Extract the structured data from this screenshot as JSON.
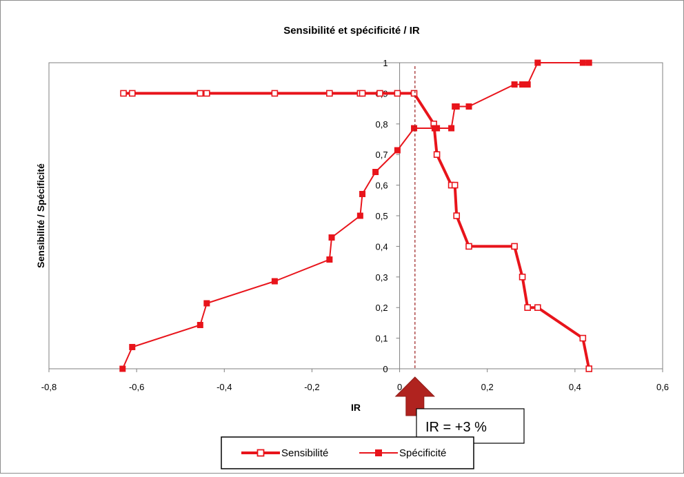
{
  "chart_data": {
    "type": "line",
    "title": "Sensibilité et spécificité / IR",
    "xlabel": "IR",
    "ylabel": "Sensibilité / Spécificité",
    "xlim": [
      -0.8,
      0.6
    ],
    "ylim": [
      0,
      1
    ],
    "xticks": [
      "-0,8",
      "-0,6",
      "-0,4",
      "-0,2",
      "0",
      "0,2",
      "0,4",
      "0,6"
    ],
    "yticks": [
      "0",
      "0,1",
      "0,2",
      "0,3",
      "0,4",
      "0,5",
      "0,6",
      "0,7",
      "0,8",
      "0,9",
      "1"
    ],
    "grid": false,
    "legend_position": "bottom",
    "series": [
      {
        "name": "Sensibilité",
        "color": "#e8141b",
        "marker": "hollow-square",
        "points": [
          [
            -0.63,
            0.9
          ],
          [
            -0.61,
            0.9
          ],
          [
            -0.455,
            0.9
          ],
          [
            -0.44,
            0.9
          ],
          [
            -0.285,
            0.9
          ],
          [
            -0.16,
            0.9
          ],
          [
            -0.09,
            0.9
          ],
          [
            -0.085,
            0.9
          ],
          [
            -0.045,
            0.9
          ],
          [
            -0.005,
            0.9
          ],
          [
            0.033,
            0.9
          ],
          [
            0.078,
            0.8
          ],
          [
            0.085,
            0.7
          ],
          [
            0.118,
            0.6
          ],
          [
            0.126,
            0.6
          ],
          [
            0.13,
            0.5
          ],
          [
            0.158,
            0.4
          ],
          [
            0.262,
            0.4
          ],
          [
            0.28,
            0.3
          ],
          [
            0.292,
            0.2
          ],
          [
            0.315,
            0.2
          ],
          [
            0.418,
            0.1
          ],
          [
            0.432,
            0
          ]
        ]
      },
      {
        "name": "Spécificité",
        "color": "#e8141b",
        "marker": "filled-square",
        "points": [
          [
            -0.632,
            0
          ],
          [
            -0.61,
            0.071
          ],
          [
            -0.455,
            0.143
          ],
          [
            -0.44,
            0.214
          ],
          [
            -0.285,
            0.286
          ],
          [
            -0.16,
            0.357
          ],
          [
            -0.155,
            0.429
          ],
          [
            -0.09,
            0.5
          ],
          [
            -0.085,
            0.571
          ],
          [
            -0.055,
            0.643
          ],
          [
            -0.005,
            0.714
          ],
          [
            0.033,
            0.786
          ],
          [
            0.08,
            0.786
          ],
          [
            0.085,
            0.786
          ],
          [
            0.118,
            0.786
          ],
          [
            0.126,
            0.857
          ],
          [
            0.13,
            0.857
          ],
          [
            0.158,
            0.857
          ],
          [
            0.262,
            0.929
          ],
          [
            0.28,
            0.929
          ],
          [
            0.292,
            0.929
          ],
          [
            0.315,
            1
          ],
          [
            0.418,
            1
          ],
          [
            0.432,
            1
          ]
        ]
      }
    ],
    "annotations": [
      {
        "label": "IR = +3 %",
        "x": 0.035,
        "dashed_line": true,
        "arrow_color": "#b0231f"
      }
    ]
  }
}
